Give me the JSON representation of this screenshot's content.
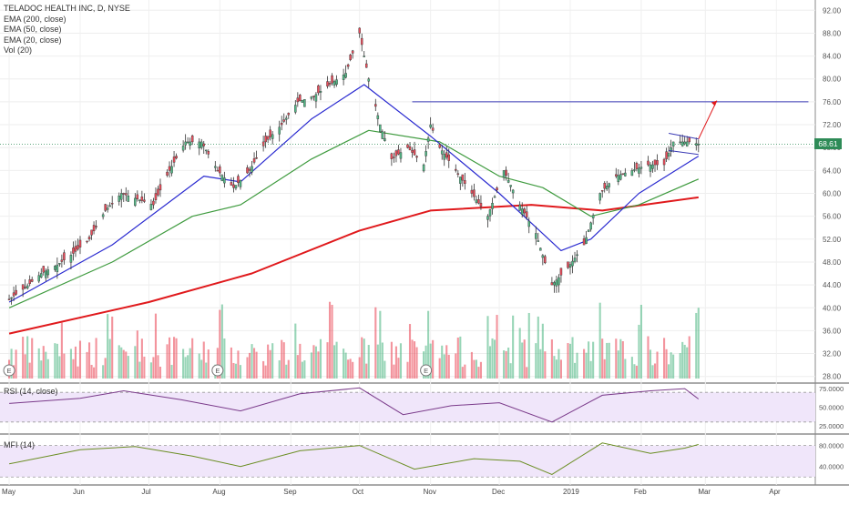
{
  "legend": {
    "title": "TELADOC HEALTH INC, D, NYSE",
    "lines": [
      "EMA (200, close)",
      "EMA (50, close)",
      "EMA (20, close)",
      "Vol (20)"
    ]
  },
  "last_price_label": "68.61",
  "colors": {
    "up": "#53b987",
    "down": "#eb4d5c",
    "ema200": "#e0191c",
    "ema50": "#3f9b3f",
    "ema20": "#2a2ad0",
    "rsi": "#7a3a8a",
    "mfi": "#6b8e23",
    "resistance": "#3a3ab5",
    "arrow": "#e0191c",
    "band": "#f0e6fa"
  },
  "chart_data": [
    {
      "type": "candlestick",
      "title": "TELADOC HEALTH INC, D, NYSE",
      "y_ticks": [
        "92.00",
        "88.00",
        "84.00",
        "80.00",
        "76.00",
        "72.00",
        "68.00",
        "64.00",
        "60.00",
        "56.00",
        "52.00",
        "48.00",
        "44.00",
        "40.00",
        "36.00",
        "32.00",
        "28.00"
      ],
      "ylim": [
        27,
        93
      ],
      "x_ticks": [
        "May",
        "Jun",
        "Jul",
        "Aug",
        "Sep",
        "Oct",
        "Nov",
        "Dec",
        "2019",
        "Feb",
        "Mar",
        "Apr"
      ],
      "price_path": {
        "dates": [
          "2018-05-01",
          "2018-05-08",
          "2018-05-15",
          "2018-05-22",
          "2018-05-29",
          "2018-06-05",
          "2018-06-12",
          "2018-06-19",
          "2018-06-26",
          "2018-07-03",
          "2018-07-10",
          "2018-07-17",
          "2018-07-24",
          "2018-07-31",
          "2018-08-07",
          "2018-08-14",
          "2018-08-21",
          "2018-08-28",
          "2018-09-04",
          "2018-09-11",
          "2018-09-18",
          "2018-09-25",
          "2018-10-01",
          "2018-10-05",
          "2018-10-10",
          "2018-10-15",
          "2018-10-22",
          "2018-10-29",
          "2018-11-01",
          "2018-11-05",
          "2018-11-12",
          "2018-11-19",
          "2018-11-26",
          "2018-12-03",
          "2018-12-10",
          "2018-12-17",
          "2018-12-24",
          "2018-12-31",
          "2019-01-07",
          "2019-01-14",
          "2019-01-21",
          "2019-01-28",
          "2019-02-04",
          "2019-02-11",
          "2019-02-15",
          "2019-02-22",
          "2019-02-26"
        ],
        "closes": [
          41.5,
          43.5,
          46,
          47.5,
          49.5,
          52,
          57,
          60,
          59,
          58,
          64,
          69,
          69,
          64,
          61,
          64,
          69,
          72,
          76,
          77,
          79,
          81,
          88,
          80,
          72,
          66,
          68,
          65,
          72,
          68,
          64,
          60,
          56,
          64,
          58,
          53,
          44,
          47,
          51,
          60,
          63,
          64,
          65,
          65,
          69,
          69,
          68.61
        ]
      },
      "overlays": [
        {
          "name": "EMA (200, close)",
          "dates": [
            "2018-05-01",
            "2018-07-01",
            "2018-08-15",
            "2018-10-01",
            "2018-11-01",
            "2018-12-15",
            "2019-01-15",
            "2019-02-26"
          ],
          "values": [
            35.5,
            41,
            46,
            53.5,
            57,
            58,
            57,
            59.3
          ]
        },
        {
          "name": "EMA (50, close)",
          "dates": [
            "2018-05-01",
            "2018-06-15",
            "2018-07-20",
            "2018-08-10",
            "2018-09-10",
            "2018-10-05",
            "2018-11-05",
            "2018-12-01",
            "2018-12-20",
            "2019-01-10",
            "2019-01-31",
            "2019-02-26"
          ],
          "values": [
            40,
            48,
            56,
            58,
            66,
            71,
            69,
            63,
            61,
            56,
            58,
            62.5
          ]
        },
        {
          "name": "EMA (20, close)",
          "dates": [
            "2018-05-01",
            "2018-06-15",
            "2018-07-25",
            "2018-08-10",
            "2018-09-10",
            "2018-10-03",
            "2018-11-01",
            "2018-12-01",
            "2018-12-28",
            "2019-01-10",
            "2019-01-31",
            "2019-02-26"
          ],
          "values": [
            41,
            51,
            63,
            62,
            73,
            79,
            70,
            60,
            50,
            52,
            60,
            66.5
          ]
        }
      ],
      "annotations": [
        {
          "type": "horizontal-line",
          "value": 76,
          "from": "2018-10-24",
          "to": "2019-04-15"
        },
        {
          "type": "arrow",
          "from": {
            "date": "2019-02-26",
            "value": 69.5
          },
          "to": {
            "date": "2019-03-06",
            "value": 76.2
          }
        },
        {
          "type": "channel",
          "from": "2019-02-13",
          "to": "2019-02-26",
          "upper": [
            70.5,
            69.5
          ],
          "lower": [
            67.5,
            66.8
          ]
        }
      ],
      "earnings_markers": [
        "E",
        "E",
        "E"
      ],
      "earnings_dates": [
        "2018-05-01",
        "2018-07-31",
        "2018-10-30"
      ],
      "last_price": 68.61
    },
    {
      "type": "bar",
      "title": "Vol (20)",
      "note": "volume bars colored by candle direction; no volume axis labels printed"
    },
    {
      "type": "line",
      "title": "RSI (14, close)",
      "y_ticks": [
        "75.0000",
        "50.0000",
        "25.0000"
      ],
      "ylim": [
        20,
        80
      ],
      "band": [
        30,
        70
      ],
      "x": [
        "2018-05-01",
        "2018-06-01",
        "2018-06-20",
        "2018-07-15",
        "2018-08-10",
        "2018-09-05",
        "2018-10-01",
        "2018-10-20",
        "2018-11-10",
        "2018-12-01",
        "2018-12-24",
        "2019-01-15",
        "2019-02-05",
        "2019-02-20",
        "2019-02-26"
      ],
      "values": [
        55,
        62,
        72,
        60,
        45,
        68,
        76,
        40,
        52,
        56,
        30,
        66,
        72,
        75,
        61
      ]
    },
    {
      "type": "line",
      "title": "MFI (14)",
      "y_ticks": [
        "80.0000",
        "40.0000"
      ],
      "ylim": [
        10,
        95
      ],
      "band": [
        20,
        80
      ],
      "x": [
        "2018-05-01",
        "2018-06-01",
        "2018-06-25",
        "2018-07-20",
        "2018-08-10",
        "2018-09-05",
        "2018-10-01",
        "2018-10-25",
        "2018-11-20",
        "2018-12-10",
        "2018-12-24",
        "2019-01-15",
        "2019-02-05",
        "2019-02-20",
        "2019-02-26"
      ],
      "values": [
        45,
        72,
        78,
        60,
        40,
        70,
        80,
        35,
        55,
        50,
        25,
        85,
        65,
        75,
        82
      ]
    }
  ]
}
